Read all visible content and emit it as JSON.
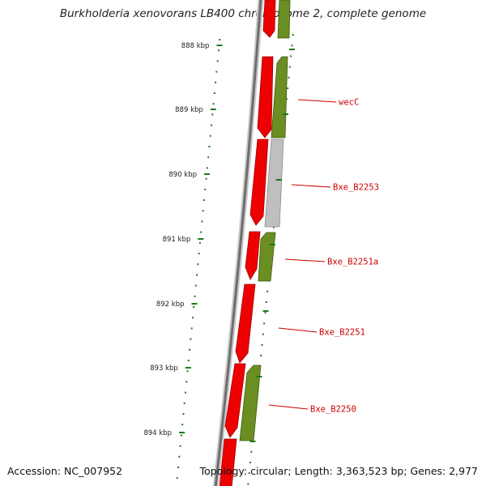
{
  "title": "Burkholderia xenovorans LB400 chromosome 2, complete genome",
  "accession": "Accession: NC_007952",
  "topology": "Topology: circular; Length: 3,363,523 bp; Genes: 2,977",
  "colors": {
    "forward_gene": "#ee0000",
    "reverse_gene": "#6b8e23",
    "reverse_gene_light": "#bfbfbf",
    "backbone": "#7a7a7a",
    "ticks": "#1a7a1a",
    "gene_label": "#cc0000"
  },
  "scale": {
    "unit": "kbp",
    "ticks": [
      {
        "label": "888 kbp"
      },
      {
        "label": "889 kbp"
      },
      {
        "label": "890 kbp"
      },
      {
        "label": "891 kbp"
      },
      {
        "label": "892 kbp"
      },
      {
        "label": "893 kbp"
      },
      {
        "label": "894 kbp"
      }
    ]
  },
  "genes": [
    {
      "label": "wecC"
    },
    {
      "label": "Bxe_B2253"
    },
    {
      "label": "Bxe_B2251a"
    },
    {
      "label": "Bxe_B2251"
    },
    {
      "label": "Bxe_B2250"
    }
  ]
}
